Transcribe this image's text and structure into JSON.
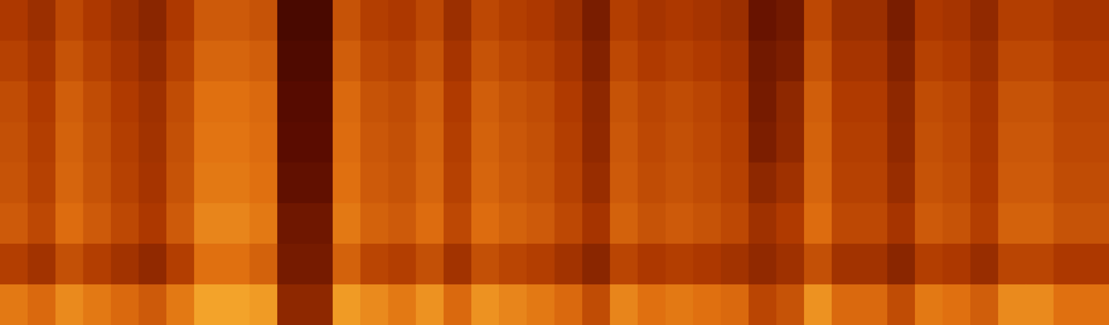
{
  "chart_data": {
    "type": "heatmap",
    "tick_labels": false,
    "zlim": [
      0,
      100
    ],
    "cells": [
      [
        54,
        49,
        59,
        54,
        49,
        44,
        54,
        64,
        64,
        62,
        22,
        22,
        62,
        56,
        54,
        59,
        49,
        59,
        56,
        54,
        49,
        39,
        56,
        52,
        54,
        52,
        49,
        34,
        37,
        59,
        49,
        49,
        39,
        54,
        52,
        46,
        56,
        56,
        52,
        52
      ],
      [
        57,
        52,
        62,
        57,
        52,
        47,
        57,
        67,
        67,
        65,
        25,
        25,
        65,
        59,
        57,
        62,
        52,
        62,
        59,
        57,
        52,
        42,
        59,
        55,
        57,
        55,
        52,
        37,
        40,
        62,
        52,
        52,
        42,
        57,
        55,
        49,
        59,
        59,
        55,
        55
      ],
      [
        60,
        55,
        65,
        60,
        55,
        50,
        60,
        70,
        70,
        68,
        28,
        28,
        68,
        62,
        60,
        65,
        55,
        65,
        62,
        60,
        55,
        45,
        62,
        58,
        60,
        58,
        55,
        38,
        45,
        65,
        55,
        55,
        45,
        60,
        58,
        52,
        62,
        62,
        58,
        58
      ],
      [
        61,
        56,
        66,
        61,
        56,
        51,
        61,
        71,
        71,
        69,
        30,
        30,
        69,
        63,
        61,
        66,
        56,
        66,
        63,
        61,
        56,
        46,
        63,
        59,
        61,
        59,
        56,
        40,
        46,
        66,
        56,
        56,
        46,
        61,
        59,
        53,
        63,
        63,
        59,
        59
      ],
      [
        62,
        57,
        67,
        62,
        57,
        52,
        62,
        72,
        72,
        70,
        32,
        32,
        70,
        64,
        62,
        67,
        57,
        67,
        64,
        62,
        57,
        48,
        64,
        60,
        62,
        60,
        57,
        45,
        50,
        67,
        57,
        57,
        48,
        62,
        60,
        54,
        64,
        64,
        60,
        60
      ],
      [
        64,
        59,
        69,
        64,
        59,
        54,
        64,
        75,
        75,
        72,
        36,
        36,
        72,
        66,
        64,
        69,
        59,
        69,
        66,
        64,
        59,
        52,
        66,
        62,
        64,
        62,
        59,
        50,
        55,
        69,
        59,
        59,
        52,
        64,
        62,
        56,
        66,
        66,
        62,
        62
      ],
      [
        56,
        51,
        61,
        56,
        51,
        46,
        56,
        70,
        70,
        66,
        38,
        38,
        66,
        58,
        56,
        61,
        51,
        61,
        58,
        56,
        51,
        44,
        58,
        54,
        56,
        54,
        51,
        46,
        50,
        61,
        51,
        51,
        44,
        56,
        54,
        48,
        58,
        58,
        54,
        54
      ],
      [
        72,
        68,
        76,
        72,
        68,
        64,
        72,
        82,
        82,
        80,
        45,
        45,
        80,
        76,
        72,
        78,
        68,
        78,
        75,
        72,
        68,
        60,
        75,
        70,
        72,
        70,
        68,
        58,
        62,
        78,
        68,
        68,
        60,
        72,
        70,
        65,
        76,
        76,
        70,
        70
      ]
    ]
  }
}
